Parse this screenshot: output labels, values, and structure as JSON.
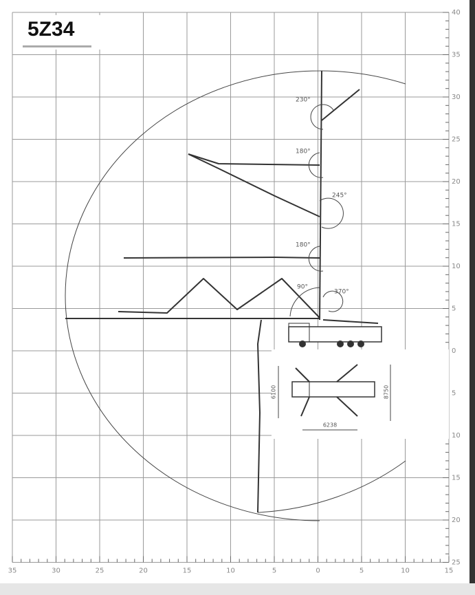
{
  "title": "5Z34",
  "x_labels": [
    35,
    30,
    25,
    20,
    15,
    10,
    5,
    0,
    5,
    10,
    15
  ],
  "y_labels": [
    40,
    35,
    30,
    25,
    20,
    15,
    10,
    5,
    0,
    5,
    10,
    15,
    20,
    25
  ],
  "angles": [
    "230°",
    "180°",
    "245°",
    "180°",
    "90°",
    "370°"
  ],
  "dimensions": [
    "6100",
    "8750",
    "6238"
  ]
}
